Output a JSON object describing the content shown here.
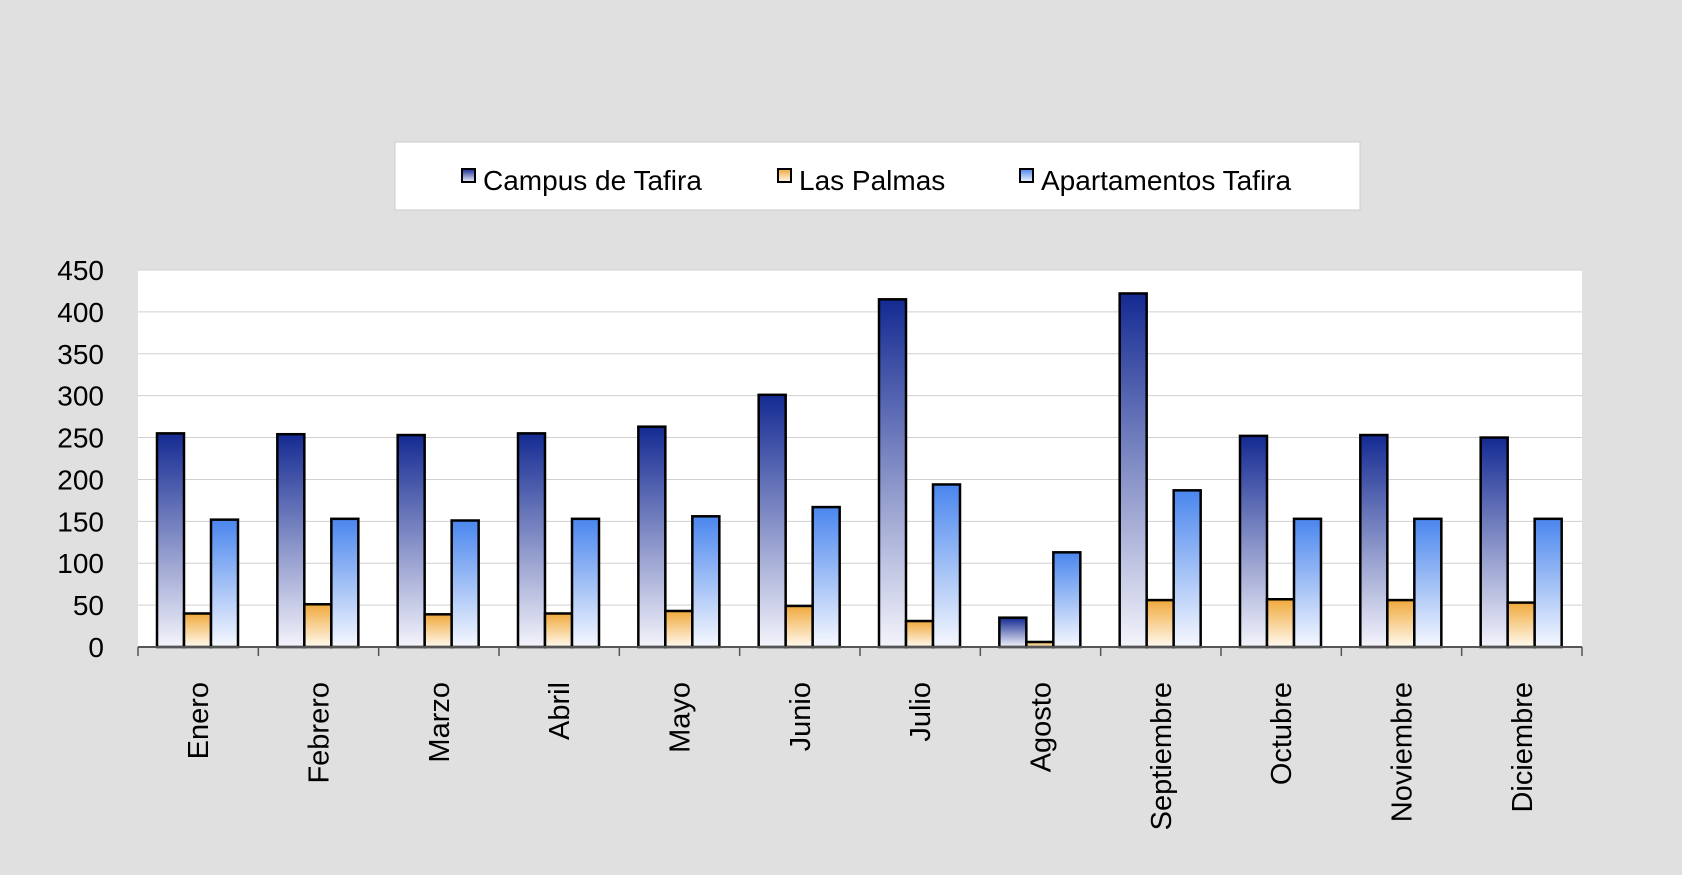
{
  "chart_data": {
    "type": "bar",
    "title": "",
    "xlabel": "",
    "ylabel": "",
    "ylim": [
      0,
      450
    ],
    "yticks": [
      0,
      50,
      100,
      150,
      200,
      250,
      300,
      350,
      400,
      450
    ],
    "grid": true,
    "legend_position": "top-center",
    "categories": [
      "Enero",
      "Febrero",
      "Marzo",
      "Abril",
      "Mayo",
      "Junio",
      "Julio",
      "Agosto",
      "Septiembre",
      "Octubre",
      "Noviembre",
      "Diciembre"
    ],
    "series": [
      {
        "name": "Campus de Tafira",
        "color_top": "#142a92",
        "color_bottom": "#f4f4fb",
        "values": [
          255,
          254,
          253,
          255,
          263,
          301,
          415,
          35,
          422,
          252,
          253,
          250
        ]
      },
      {
        "name": "Las Palmas",
        "color_top": "#f0a93c",
        "color_bottom": "#fffaf0",
        "values": [
          40,
          51,
          39,
          40,
          43,
          49,
          31,
          6,
          56,
          57,
          56,
          53
        ]
      },
      {
        "name": "Apartamentos Tafira",
        "color_top": "#4a86ee",
        "color_bottom": "#f6f8fe",
        "values": [
          152,
          153,
          151,
          153,
          156,
          167,
          194,
          113,
          187,
          153,
          153,
          153
        ]
      }
    ]
  }
}
